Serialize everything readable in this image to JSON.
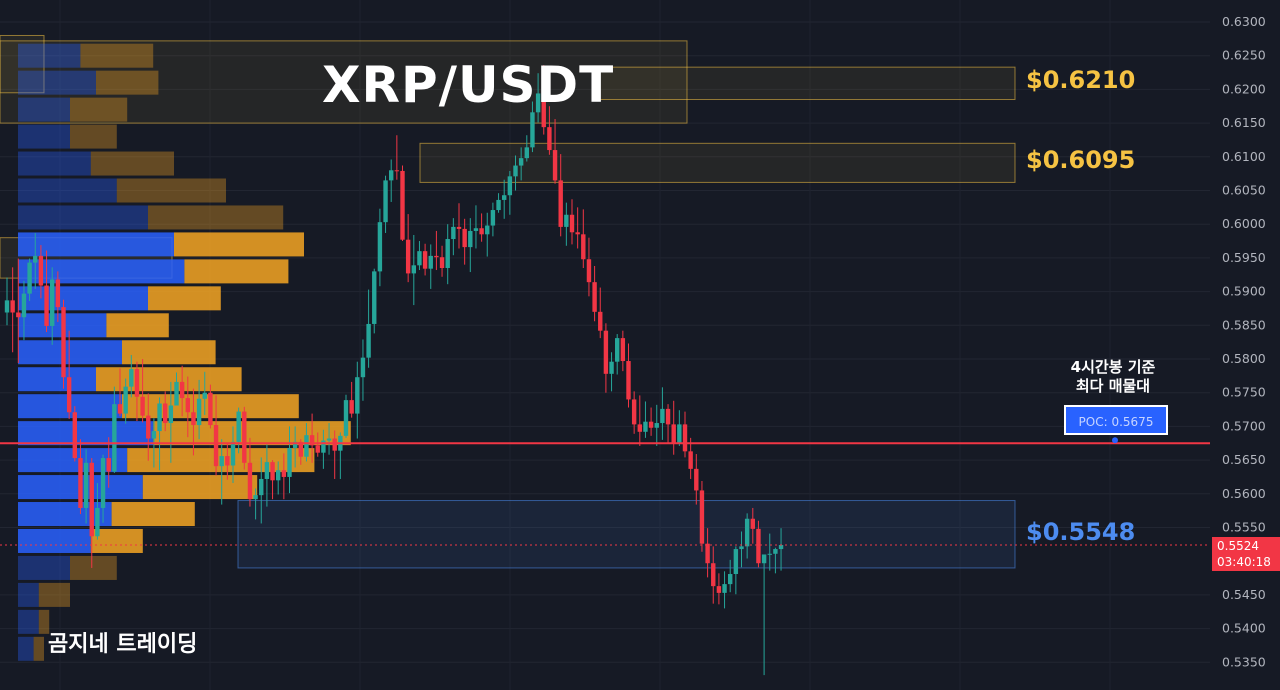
{
  "chart_data": {
    "type": "candlestick",
    "title": "XRP/USDT",
    "y_axis": {
      "ticks": [
        "0.6300",
        "0.6250",
        "0.6200",
        "0.6150",
        "0.6100",
        "0.6050",
        "0.6000",
        "0.5950",
        "0.5900",
        "0.5850",
        "0.5800",
        "0.5750",
        "0.5700",
        "0.5650",
        "0.5600",
        "0.5550",
        "0.5450",
        "0.5400",
        "0.5350"
      ],
      "range": [
        0.532,
        0.6325
      ]
    },
    "price_levels": [
      {
        "label": "$0.6210",
        "value": 0.621,
        "color": "#f6c343"
      },
      {
        "label": "$0.6095",
        "value": 0.6095,
        "color": "#f6c343"
      },
      {
        "label": "$0.5548",
        "value": 0.5548,
        "color": "#4d8cf0"
      }
    ],
    "poc": {
      "label": "POC: 0.5675",
      "value": 0.5675,
      "note_line1": "4시간봉 기준",
      "note_line2": "최다 매물대"
    },
    "current_price": {
      "value": "0.5524",
      "countdown": "03:40:18"
    },
    "zones": [
      {
        "type": "supply",
        "top": 0.6272,
        "bottom": 0.615
      },
      {
        "type": "supply",
        "top": 0.6233,
        "bottom": 0.6185
      },
      {
        "type": "supply",
        "top": 0.612,
        "bottom": 0.6062
      },
      {
        "type": "supply",
        "top": 0.628,
        "bottom": 0.6195
      },
      {
        "type": "supply",
        "top": 0.598,
        "bottom": 0.592
      },
      {
        "type": "demand",
        "top": 0.559,
        "bottom": 0.549
      }
    ],
    "volume_profile": {
      "levels": [
        0.625,
        0.621,
        0.617,
        0.613,
        0.609,
        0.605,
        0.601,
        0.597,
        0.593,
        0.589,
        0.585,
        0.581,
        0.577,
        0.573,
        0.569,
        0.565,
        0.561,
        0.557,
        0.553,
        0.549,
        0.545,
        0.541,
        0.537
      ],
      "buy": [
        12,
        15,
        10,
        10,
        14,
        19,
        25,
        30,
        32,
        25,
        17,
        20,
        15,
        20,
        26,
        21,
        24,
        18,
        14,
        10,
        4,
        4,
        3
      ],
      "sell": [
        14,
        12,
        11,
        9,
        16,
        21,
        26,
        25,
        20,
        14,
        12,
        18,
        28,
        34,
        38,
        36,
        22,
        16,
        10,
        9,
        6,
        2,
        2
      ]
    },
    "candles": [
      [
        0.5869,
        0.5921,
        0.585,
        0.5887
      ],
      [
        0.5887,
        0.5936,
        0.581,
        0.5869
      ],
      [
        0.5869,
        0.5949,
        0.5794,
        0.5862
      ],
      [
        0.5862,
        0.5916,
        0.5828,
        0.5897
      ],
      [
        0.5897,
        0.5949,
        0.5886,
        0.5943
      ],
      [
        0.5943,
        0.5987,
        0.5904,
        0.5953
      ],
      [
        0.5953,
        0.5969,
        0.589,
        0.5909
      ],
      [
        0.5909,
        0.5961,
        0.584,
        0.5849
      ],
      [
        0.5849,
        0.5936,
        0.5821,
        0.5918
      ],
      [
        0.5918,
        0.593,
        0.5855,
        0.5877
      ],
      [
        0.5877,
        0.5888,
        0.5756,
        0.5773
      ],
      [
        0.5773,
        0.5842,
        0.5711,
        0.5721
      ],
      [
        0.5721,
        0.573,
        0.5648,
        0.5653
      ],
      [
        0.5653,
        0.5681,
        0.557,
        0.5579
      ],
      [
        0.5579,
        0.5666,
        0.5556,
        0.5646
      ],
      [
        0.5646,
        0.5653,
        0.549,
        0.5537
      ],
      [
        0.5537,
        0.5616,
        0.5532,
        0.5579
      ],
      [
        0.5579,
        0.5658,
        0.5557,
        0.5653
      ],
      [
        0.5653,
        0.5684,
        0.5609,
        0.5633
      ],
      [
        0.5633,
        0.5759,
        0.5631,
        0.5733
      ],
      [
        0.5733,
        0.5786,
        0.5715,
        0.5719
      ],
      [
        0.5719,
        0.5771,
        0.5704,
        0.5759
      ],
      [
        0.5759,
        0.5806,
        0.5743,
        0.5785
      ],
      [
        0.5785,
        0.5796,
        0.5708,
        0.5744
      ],
      [
        0.5744,
        0.58,
        0.5706,
        0.5716
      ],
      [
        0.5716,
        0.5749,
        0.5649,
        0.5682
      ],
      [
        0.5682,
        0.5712,
        0.5639,
        0.5693
      ],
      [
        0.5693,
        0.5743,
        0.5635,
        0.5734
      ],
      [
        0.5734,
        0.5752,
        0.5693,
        0.5705
      ],
      [
        0.5705,
        0.5766,
        0.5646,
        0.5731
      ],
      [
        0.5731,
        0.578,
        0.5731,
        0.5766
      ],
      [
        0.5766,
        0.579,
        0.5715,
        0.5742
      ],
      [
        0.5742,
        0.5774,
        0.5684,
        0.5721
      ],
      [
        0.5721,
        0.5756,
        0.5657,
        0.5702
      ],
      [
        0.5702,
        0.5769,
        0.5681,
        0.5741
      ],
      [
        0.5741,
        0.5781,
        0.5717,
        0.575
      ],
      [
        0.575,
        0.5762,
        0.5697,
        0.5702
      ],
      [
        0.5702,
        0.5746,
        0.5627,
        0.5641
      ],
      [
        0.5641,
        0.5681,
        0.5584,
        0.5656
      ],
      [
        0.5656,
        0.5676,
        0.5621,
        0.5642
      ],
      [
        0.5642,
        0.57,
        0.5616,
        0.5677
      ],
      [
        0.5677,
        0.5728,
        0.566,
        0.5722
      ],
      [
        0.5722,
        0.5729,
        0.5636,
        0.5646
      ],
      [
        0.5646,
        0.5683,
        0.5581,
        0.5592
      ],
      [
        0.5592,
        0.5608,
        0.5562,
        0.5598
      ],
      [
        0.5598,
        0.5654,
        0.5556,
        0.5622
      ],
      [
        0.5622,
        0.5673,
        0.5581,
        0.5647
      ],
      [
        0.5647,
        0.565,
        0.5592,
        0.562
      ],
      [
        0.562,
        0.5648,
        0.5599,
        0.5635
      ],
      [
        0.5635,
        0.566,
        0.5592,
        0.5625
      ],
      [
        0.5625,
        0.57,
        0.5601,
        0.5668
      ],
      [
        0.5668,
        0.57,
        0.5639,
        0.5677
      ],
      [
        0.5677,
        0.5681,
        0.5643,
        0.5655
      ],
      [
        0.5655,
        0.5705,
        0.5648,
        0.5687
      ],
      [
        0.5687,
        0.5719,
        0.5646,
        0.5672
      ],
      [
        0.5672,
        0.5691,
        0.5655,
        0.5661
      ],
      [
        0.5661,
        0.5695,
        0.5637,
        0.5679
      ],
      [
        0.5679,
        0.5705,
        0.5658,
        0.5682
      ],
      [
        0.5682,
        0.5694,
        0.5622,
        0.5664
      ],
      [
        0.5664,
        0.5691,
        0.5622,
        0.5686
      ],
      [
        0.5686,
        0.5747,
        0.5683,
        0.5739
      ],
      [
        0.5739,
        0.5766,
        0.5713,
        0.5719
      ],
      [
        0.5719,
        0.5796,
        0.5682,
        0.5773
      ],
      [
        0.5773,
        0.5829,
        0.5738,
        0.5802
      ],
      [
        0.5802,
        0.5903,
        0.5787,
        0.5852
      ],
      [
        0.5852,
        0.5934,
        0.5838,
        0.593
      ],
      [
        0.593,
        0.6023,
        0.5908,
        0.6003
      ],
      [
        0.6003,
        0.6072,
        0.5987,
        0.6065
      ],
      [
        0.6065,
        0.6096,
        0.6033,
        0.608
      ],
      [
        0.608,
        0.6132,
        0.6066,
        0.6079
      ],
      [
        0.6079,
        0.6087,
        0.5975,
        0.5977
      ],
      [
        0.5977,
        0.6015,
        0.5914,
        0.5927
      ],
      [
        0.5927,
        0.5984,
        0.588,
        0.5939
      ],
      [
        0.5939,
        0.5975,
        0.5932,
        0.596
      ],
      [
        0.596,
        0.5971,
        0.5924,
        0.5934
      ],
      [
        0.5934,
        0.597,
        0.5904,
        0.5953
      ],
      [
        0.5953,
        0.599,
        0.5932,
        0.5951
      ],
      [
        0.5951,
        0.5968,
        0.5922,
        0.5935
      ],
      [
        0.5935,
        0.6,
        0.5911,
        0.5978
      ],
      [
        0.5978,
        0.6009,
        0.5954,
        0.5996
      ],
      [
        0.5996,
        0.6031,
        0.5964,
        0.5993
      ],
      [
        0.5993,
        0.6008,
        0.594,
        0.5966
      ],
      [
        0.5966,
        0.6009,
        0.5929,
        0.599
      ],
      [
        0.599,
        0.6028,
        0.5964,
        0.5994
      ],
      [
        0.5994,
        0.6016,
        0.5974,
        0.5985
      ],
      [
        0.5985,
        0.6017,
        0.5952,
        0.5998
      ],
      [
        0.5998,
        0.6032,
        0.5982,
        0.6021
      ],
      [
        0.6021,
        0.6046,
        0.6017,
        0.6036
      ],
      [
        0.6036,
        0.6066,
        0.6008,
        0.6043
      ],
      [
        0.6043,
        0.6079,
        0.6014,
        0.6071
      ],
      [
        0.6071,
        0.6102,
        0.605,
        0.6087
      ],
      [
        0.6087,
        0.6114,
        0.6065,
        0.6098
      ],
      [
        0.6098,
        0.6132,
        0.6093,
        0.6114
      ],
      [
        0.6114,
        0.6182,
        0.6107,
        0.6166
      ],
      [
        0.6166,
        0.6224,
        0.6151,
        0.6194
      ],
      [
        0.6194,
        0.6236,
        0.6133,
        0.6144
      ],
      [
        0.6144,
        0.6175,
        0.6103,
        0.611
      ],
      [
        0.611,
        0.6156,
        0.606,
        0.6065
      ],
      [
        0.6065,
        0.6104,
        0.5982,
        0.5996
      ],
      [
        0.5996,
        0.6032,
        0.5968,
        0.6014
      ],
      [
        0.6014,
        0.6037,
        0.597,
        0.5988
      ],
      [
        0.5988,
        0.6025,
        0.5964,
        0.5985
      ],
      [
        0.5985,
        0.6022,
        0.5935,
        0.5948
      ],
      [
        0.5948,
        0.598,
        0.5893,
        0.5914
      ],
      [
        0.5914,
        0.5938,
        0.5856,
        0.587
      ],
      [
        0.587,
        0.5906,
        0.5831,
        0.5842
      ],
      [
        0.5842,
        0.5853,
        0.575,
        0.5778
      ],
      [
        0.5778,
        0.581,
        0.5752,
        0.5796
      ],
      [
        0.5796,
        0.5837,
        0.5777,
        0.5831
      ],
      [
        0.5831,
        0.5842,
        0.5782,
        0.5797
      ],
      [
        0.5797,
        0.5823,
        0.5728,
        0.574
      ],
      [
        0.574,
        0.5752,
        0.5689,
        0.5703
      ],
      [
        0.5703,
        0.5746,
        0.5671,
        0.5692
      ],
      [
        0.5692,
        0.5737,
        0.5683,
        0.5707
      ],
      [
        0.5707,
        0.5728,
        0.5686,
        0.5698
      ],
      [
        0.5698,
        0.5732,
        0.5671,
        0.5705
      ],
      [
        0.5705,
        0.5758,
        0.568,
        0.5726
      ],
      [
        0.5726,
        0.5733,
        0.5675,
        0.5703
      ],
      [
        0.5703,
        0.5738,
        0.5658,
        0.5676
      ],
      [
        0.5676,
        0.5724,
        0.5671,
        0.5703
      ],
      [
        0.5703,
        0.5722,
        0.5654,
        0.5663
      ],
      [
        0.5663,
        0.5683,
        0.5622,
        0.5637
      ],
      [
        0.5637,
        0.5659,
        0.5584,
        0.5605
      ],
      [
        0.5605,
        0.5619,
        0.5514,
        0.5526
      ],
      [
        0.5526,
        0.5549,
        0.5476,
        0.5497
      ],
      [
        0.5497,
        0.5522,
        0.5437,
        0.5463
      ],
      [
        0.5463,
        0.5482,
        0.5436,
        0.5453
      ],
      [
        0.5453,
        0.5485,
        0.543,
        0.5466
      ],
      [
        0.5466,
        0.5502,
        0.5454,
        0.5481
      ],
      [
        0.5481,
        0.5522,
        0.5451,
        0.5518
      ],
      [
        0.5518,
        0.5544,
        0.5491,
        0.5522
      ],
      [
        0.5522,
        0.5571,
        0.5504,
        0.5563
      ],
      [
        0.5563,
        0.5579,
        0.5526,
        0.5548
      ],
      [
        0.5548,
        0.556,
        0.5491,
        0.5497
      ],
      [
        0.5497,
        0.5506,
        0.5331,
        0.551
      ],
      [
        0.551,
        0.5541,
        0.5486,
        0.5511
      ],
      [
        0.5511,
        0.552,
        0.5482,
        0.5518
      ],
      [
        0.5518,
        0.5549,
        0.5486,
        0.5524
      ]
    ]
  },
  "watermark": "곰지네 트레이딩",
  "colors": {
    "up": "#26a69a",
    "down": "#f23645",
    "supply": "#f6c343",
    "demand": "#4d8cf0",
    "poc": "#f23645"
  }
}
